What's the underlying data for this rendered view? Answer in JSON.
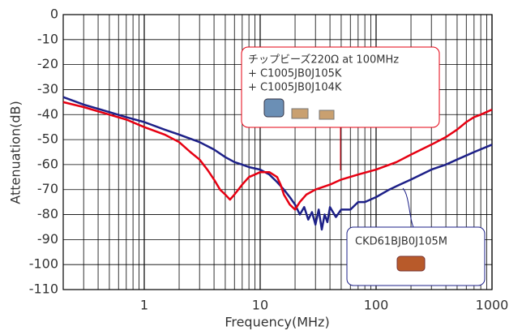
{
  "chart_data": {
    "type": "line",
    "x_log": true,
    "grid": true,
    "x_label": "Frequency(MHz)",
    "y_label": "Attenuation(dB)",
    "xlim": [
      0.2,
      1000
    ],
    "xticks": [
      1,
      10,
      100,
      1000
    ],
    "xminorticks": [
      0.3,
      0.4,
      0.5,
      0.6,
      0.7,
      0.8,
      0.9,
      2,
      3,
      4,
      5,
      6,
      7,
      8,
      9,
      20,
      30,
      40,
      50,
      60,
      70,
      80,
      90,
      200,
      300,
      400,
      500,
      600,
      700,
      800,
      900
    ],
    "ylim": [
      -110,
      0
    ],
    "yticks": [
      0,
      -10,
      -20,
      -30,
      -40,
      -50,
      -60,
      -70,
      -80,
      -90,
      -100,
      -110
    ],
    "series": [
      {
        "name": "CKD61BJB0J105M",
        "color": "#1d2088",
        "x": [
          0.2,
          0.3,
          0.5,
          0.7,
          1,
          1.5,
          2,
          3,
          4,
          5,
          6,
          7,
          8,
          10,
          12,
          14,
          16,
          18,
          20,
          22,
          24,
          26,
          28,
          30,
          32,
          34,
          36,
          38,
          40,
          45,
          50,
          60,
          70,
          80,
          100,
          130,
          160,
          200,
          300,
          400,
          500,
          700,
          1000
        ],
        "values": [
          -33,
          -36,
          -39,
          -41,
          -43,
          -46,
          -48,
          -51,
          -54,
          -57,
          -59,
          -60,
          -61,
          -62,
          -64,
          -67,
          -70,
          -73,
          -76,
          -80,
          -77,
          -82,
          -79,
          -84,
          -78,
          -86,
          -80,
          -83,
          -77,
          -81,
          -78,
          -78,
          -75,
          -75,
          -73,
          -70,
          -68,
          -66,
          -62,
          -60,
          -58,
          -55,
          -52
        ]
      },
      {
        "name": "チップビーズ220Ω at 100MHz",
        "extra": [
          "+ C1005JB0J105K",
          "+ C1005JB0J104K"
        ],
        "color": "#e60012",
        "x": [
          0.2,
          0.3,
          0.5,
          0.7,
          1,
          1.5,
          2,
          2.5,
          3,
          3.5,
          4,
          4.5,
          5,
          5.5,
          6,
          7,
          8,
          9,
          10,
          12,
          14,
          15,
          16,
          18,
          20,
          22,
          25,
          30,
          40,
          50,
          70,
          100,
          150,
          200,
          300,
          400,
          500,
          600,
          700,
          800,
          1000
        ],
        "values": [
          -35,
          -37,
          -40,
          -42,
          -45,
          -48,
          -51,
          -55,
          -58,
          -62,
          -66,
          -70,
          -72,
          -74,
          -72,
          -68,
          -65,
          -64,
          -63,
          -63,
          -65,
          -68,
          -72,
          -76,
          -78,
          -75,
          -72,
          -70,
          -68,
          -66,
          -64,
          -62,
          -59,
          -56,
          -52,
          -49,
          -46,
          -43,
          -41,
          -40,
          -38
        ]
      }
    ]
  }
}
